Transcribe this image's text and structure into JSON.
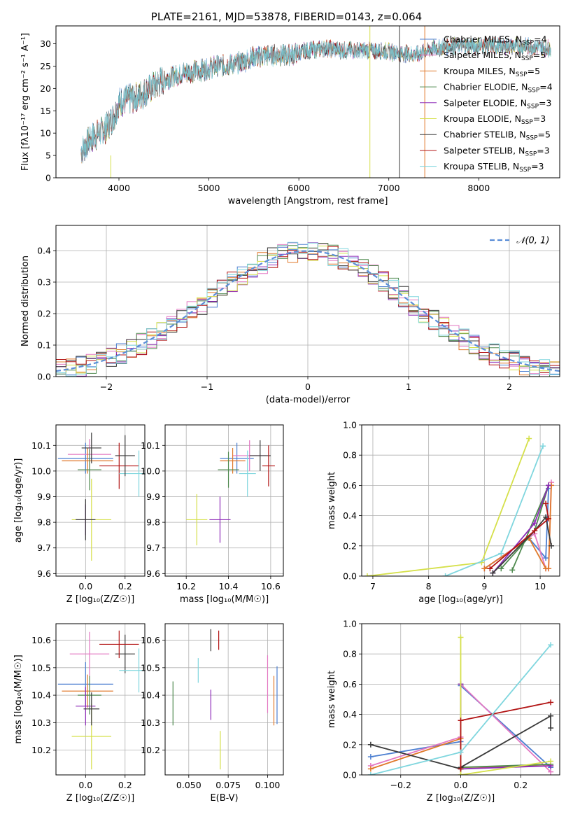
{
  "chart_data": [
    {
      "id": "spectrum",
      "type": "line",
      "title": "PLATE=2161, MJD=53878, FIBERID=0143, z=0.064",
      "xlabel": "wavelength [Angstrom, rest frame]",
      "ylabel": "Flux [fλ10⁻¹⁷ erg cm⁻² s⁻¹ A⁻¹]",
      "xlim": [
        3300,
        8900
      ],
      "ylim": [
        0,
        34
      ],
      "xticks": [
        4000,
        5000,
        6000,
        7000,
        8000
      ],
      "yticks": [
        0,
        5,
        10,
        15,
        20,
        25,
        30
      ],
      "grid": false,
      "legend_placement": "right",
      "legend": [
        {
          "label": "Chabrier MILES, N",
          "sub": "SSP",
          "suffix": "=4",
          "color": "#4c7fd1"
        },
        {
          "label": "Salpeter MILES, N",
          "sub": "SSP",
          "suffix": "=5",
          "color": "#e377c2"
        },
        {
          "label": "Kroupa MILES, N",
          "sub": "SSP",
          "suffix": "=5",
          "color": "#e0792b"
        },
        {
          "label": "Chabrier ELODIE, N",
          "sub": "SSP",
          "suffix": "=4",
          "color": "#4f8a4f"
        },
        {
          "label": "Salpeter ELODIE, N",
          "sub": "SSP",
          "suffix": "=3",
          "color": "#8e2bb8"
        },
        {
          "label": "Kroupa ELODIE, N",
          "sub": "SSP",
          "suffix": "=3",
          "color": "#d5e04a"
        },
        {
          "label": "Chabrier STELIB, N",
          "sub": "SSP",
          "suffix": "=5",
          "color": "#3a3a3a"
        },
        {
          "label": "Salpeter STELIB, N",
          "sub": "SSP",
          "suffix": "=3",
          "color": "#b21414"
        },
        {
          "label": "Kroupa STELIB, N",
          "sub": "SSP",
          "suffix": "=3",
          "color": "#7fd6de"
        }
      ],
      "continuum_x": [
        3580,
        3700,
        3850,
        3950,
        4000,
        4100,
        4200,
        4350,
        4500,
        4700,
        4900,
        5100,
        5300,
        5500,
        5700,
        5900,
        6100,
        6300,
        6500,
        6700,
        6900,
        7100,
        7300,
        7500,
        7700,
        7900,
        8100,
        8300,
        8500,
        8800
      ],
      "continuum_y": [
        6,
        9,
        11,
        14,
        17,
        17.5,
        18,
        20,
        22,
        23.5,
        24,
        25,
        25.5,
        27,
        27.5,
        27.5,
        28.5,
        29,
        28.5,
        28.5,
        28.5,
        28,
        27.5,
        29,
        29.5,
        29.5,
        29.5,
        29.5,
        29.5,
        29
      ]
    },
    {
      "id": "residuals",
      "type": "line",
      "xlabel": "(data-model)/error",
      "ylabel": "Normed distribution",
      "xlim": [
        -2.5,
        2.5
      ],
      "ylim": [
        0,
        0.48
      ],
      "xticks": [
        -2,
        -1,
        0,
        1,
        2
      ],
      "yticks": [
        0.0,
        0.1,
        0.2,
        0.3,
        0.4
      ],
      "grid": true,
      "legend_placement": "upper right",
      "reference_curve": "𝒩(0, 1)"
    },
    {
      "id": "age_vs_Z",
      "type": "scatter",
      "xlabel": "Z [log₁₀(Z/Z☉)]",
      "ylabel": "age  [log₁₀(age/yr)]",
      "xlim": [
        -0.15,
        0.3
      ],
      "ylim": [
        9.59,
        10.18
      ],
      "xticks": [
        0.0,
        0.2
      ],
      "yticks": [
        9.6,
        9.7,
        9.8,
        9.9,
        10.0,
        10.1
      ],
      "grid": true,
      "points": [
        {
          "x": 0.0,
          "y": 10.05,
          "xerr": 0.14,
          "yerr": 0.06,
          "color": "#4c7fd1"
        },
        {
          "x": 0.02,
          "y": 10.065,
          "xerr": 0.11,
          "yerr": 0.06,
          "color": "#e377c2"
        },
        {
          "x": 0.01,
          "y": 10.04,
          "xerr": 0.13,
          "yerr": 0.05,
          "color": "#e0792b"
        },
        {
          "x": 0.02,
          "y": 10.005,
          "xerr": 0.06,
          "yerr": 0.08,
          "color": "#4f8a4f"
        },
        {
          "x": 0.0,
          "y": 9.81,
          "xerr": 0.05,
          "yerr": 0.06,
          "color": "#8e2bb8"
        },
        {
          "x": 0.03,
          "y": 9.81,
          "xerr": 0.1,
          "yerr": 0.16,
          "color": "#d5e04a"
        },
        {
          "x": 0.03,
          "y": 10.09,
          "xerr": 0.05,
          "yerr": 0.06,
          "color": "#3a3a3a"
        },
        {
          "x": 0.17,
          "y": 10.02,
          "xerr": 0.1,
          "yerr": 0.09,
          "color": "#b21414"
        },
        {
          "x": 0.27,
          "y": 9.99,
          "xerr": 0.1,
          "yerr": 0.09,
          "color": "#7fd6de"
        },
        {
          "x": 0.0,
          "y": 9.81,
          "xerr": 0.05,
          "yerr": 0.08,
          "color": "#3a3a3a"
        },
        {
          "x": 0.2,
          "y": 10.06,
          "xerr": 0.05,
          "yerr": 0.08,
          "color": "#3a3a3a"
        }
      ]
    },
    {
      "id": "age_vs_mass",
      "type": "scatter",
      "xlabel": "mass [log₁₀(M/M☉)]",
      "ylabel": "",
      "xlim": [
        10.1,
        10.66
      ],
      "ylim": [
        9.59,
        10.18
      ],
      "xticks": [
        10.2,
        10.4,
        10.6
      ],
      "yticks": [
        9.6,
        9.7,
        9.8,
        9.9,
        10.0,
        10.1
      ],
      "grid": true,
      "points": [
        {
          "x": 10.44,
          "y": 10.05,
          "xerr": 0.08,
          "yerr": 0.06,
          "color": "#4c7fd1"
        },
        {
          "x": 10.5,
          "y": 10.06,
          "xerr": 0.08,
          "yerr": 0.06,
          "color": "#e377c2"
        },
        {
          "x": 10.42,
          "y": 10.04,
          "xerr": 0.06,
          "yerr": 0.05,
          "color": "#e0792b"
        },
        {
          "x": 10.4,
          "y": 10.005,
          "xerr": 0.05,
          "yerr": 0.07,
          "color": "#4f8a4f"
        },
        {
          "x": 10.36,
          "y": 9.81,
          "xerr": 0.05,
          "yerr": 0.09,
          "color": "#8e2bb8"
        },
        {
          "x": 10.25,
          "y": 9.81,
          "xerr": 0.05,
          "yerr": 0.1,
          "color": "#d5e04a"
        },
        {
          "x": 10.55,
          "y": 10.06,
          "xerr": 0.05,
          "yerr": 0.06,
          "color": "#3a3a3a"
        },
        {
          "x": 10.59,
          "y": 10.02,
          "xerr": 0.03,
          "yerr": 0.08,
          "color": "#b21414"
        },
        {
          "x": 10.49,
          "y": 9.99,
          "xerr": 0.04,
          "yerr": 0.09,
          "color": "#7fd6de"
        }
      ]
    },
    {
      "id": "weight_vs_age",
      "type": "line",
      "xlabel": "age  [log₁₀(age/yr)]",
      "ylabel": "mass weight",
      "xlim": [
        6.8,
        10.35
      ],
      "ylim": [
        0,
        1.0
      ],
      "xticks": [
        7,
        8,
        9,
        10
      ],
      "yticks": [
        0.0,
        0.2,
        0.4,
        0.6,
        0.8,
        1.0
      ],
      "grid": true,
      "series": [
        {
          "color": "#4c7fd1",
          "x": [
            9.0,
            9.8,
            10.1,
            10.15
          ],
          "y": [
            0.05,
            0.25,
            0.12,
            0.58
          ]
        },
        {
          "color": "#e377c2",
          "x": [
            9.0,
            9.9,
            10.1,
            10.15,
            10.2
          ],
          "y": [
            0.05,
            0.28,
            0.05,
            0.05,
            0.62
          ]
        },
        {
          "color": "#e0792b",
          "x": [
            9.0,
            9.8,
            10.1,
            10.15,
            10.2
          ],
          "y": [
            0.05,
            0.25,
            0.05,
            0.05,
            0.6
          ]
        },
        {
          "color": "#4f8a4f",
          "x": [
            9.3,
            9.9,
            10.15,
            9.5
          ],
          "y": [
            0.05,
            0.3,
            0.6,
            0.04
          ]
        },
        {
          "color": "#8e2bb8",
          "x": [
            9.15,
            9.9,
            10.15
          ],
          "y": [
            0.02,
            0.35,
            0.6
          ]
        },
        {
          "color": "#d5e04a",
          "x": [
            6.9,
            8.95,
            9.8
          ],
          "y": [
            0.0,
            0.09,
            0.91
          ]
        },
        {
          "color": "#3a3a3a",
          "x": [
            9.15,
            9.9,
            10.1,
            10.2
          ],
          "y": [
            0.02,
            0.3,
            0.39,
            0.2
          ]
        },
        {
          "color": "#b21414",
          "x": [
            9.1,
            9.9,
            10.15,
            10.1
          ],
          "y": [
            0.05,
            0.3,
            0.38,
            0.48
          ]
        },
        {
          "color": "#7fd6de",
          "x": [
            8.3,
            9.3,
            10.05
          ],
          "y": [
            0.0,
            0.15,
            0.86
          ]
        }
      ]
    },
    {
      "id": "mass_vs_Z",
      "type": "scatter",
      "xlabel": "Z [log₁₀(Z/Z☉)]",
      "ylabel": "mass [log₁₀(M/M☉)]",
      "xlim": [
        -0.15,
        0.3
      ],
      "ylim": [
        10.11,
        10.66
      ],
      "xticks": [
        0.0,
        0.2
      ],
      "yticks": [
        10.2,
        10.3,
        10.4,
        10.5,
        10.6
      ],
      "grid": true,
      "points": [
        {
          "x": 0.0,
          "y": 10.44,
          "xerr": 0.14,
          "yerr": 0.08,
          "color": "#4c7fd1"
        },
        {
          "x": 0.02,
          "y": 10.55,
          "xerr": 0.1,
          "yerr": 0.08,
          "color": "#e377c2"
        },
        {
          "x": 0.01,
          "y": 10.415,
          "xerr": 0.13,
          "yerr": 0.06,
          "color": "#e0792b"
        },
        {
          "x": 0.02,
          "y": 10.4,
          "xerr": 0.06,
          "yerr": 0.07,
          "color": "#4f8a4f"
        },
        {
          "x": 0.0,
          "y": 10.36,
          "xerr": 0.05,
          "yerr": 0.07,
          "color": "#8e2bb8"
        },
        {
          "x": 0.03,
          "y": 10.25,
          "xerr": 0.1,
          "yerr": 0.12,
          "color": "#d5e04a"
        },
        {
          "x": 0.2,
          "y": 10.55,
          "xerr": 0.05,
          "yerr": 0.07,
          "color": "#3a3a3a"
        },
        {
          "x": 0.17,
          "y": 10.585,
          "xerr": 0.1,
          "yerr": 0.05,
          "color": "#b21414"
        },
        {
          "x": 0.27,
          "y": 10.49,
          "xerr": 0.1,
          "yerr": 0.08,
          "color": "#7fd6de"
        },
        {
          "x": 0.03,
          "y": 10.35,
          "xerr": 0.04,
          "yerr": 0.06,
          "color": "#3a3a3a"
        }
      ]
    },
    {
      "id": "mass_vs_ebv",
      "type": "scatter",
      "xlabel": "E(B-V)",
      "ylabel": "",
      "xlim": [
        0.035,
        0.11
      ],
      "ylim": [
        10.11,
        10.66
      ],
      "xticks": [
        0.05,
        0.075,
        0.1
      ],
      "yticks": [
        10.2,
        10.3,
        10.4,
        10.5,
        10.6
      ],
      "grid": true,
      "points": [
        {
          "x": 0.106,
          "y": 10.4,
          "xerr": 0.0,
          "yerr": 0.105,
          "color": "#4c7fd1"
        },
        {
          "x": 0.1,
          "y": 10.44,
          "xerr": 0.0,
          "yerr": 0.105,
          "color": "#e377c2"
        },
        {
          "x": 0.104,
          "y": 10.38,
          "xerr": 0.0,
          "yerr": 0.09,
          "color": "#e0792b"
        },
        {
          "x": 0.04,
          "y": 10.37,
          "xerr": 0.0,
          "yerr": 0.08,
          "color": "#4f8a4f"
        },
        {
          "x": 0.064,
          "y": 10.365,
          "xerr": 0.0,
          "yerr": 0.055,
          "color": "#8e2bb8"
        },
        {
          "x": 0.07,
          "y": 10.2,
          "xerr": 0.0,
          "yerr": 0.07,
          "color": "#d5e04a"
        },
        {
          "x": 0.064,
          "y": 10.6,
          "xerr": 0.0,
          "yerr": 0.04,
          "color": "#3a3a3a"
        },
        {
          "x": 0.069,
          "y": 10.6,
          "xerr": 0.0,
          "yerr": 0.035,
          "color": "#b21414"
        },
        {
          "x": 0.056,
          "y": 10.49,
          "xerr": 0.0,
          "yerr": 0.045,
          "color": "#7fd6de"
        }
      ]
    },
    {
      "id": "weight_vs_Z",
      "type": "line",
      "xlabel": "Z [log₁₀(Z/Z☉)]",
      "ylabel": "mass weight",
      "xlim": [
        -0.33,
        0.33
      ],
      "ylim": [
        0,
        1.0
      ],
      "xticks": [
        -0.2,
        0.0,
        0.2
      ],
      "yticks": [
        0.0,
        0.2,
        0.4,
        0.6,
        0.8,
        1.0
      ],
      "grid": true,
      "series": [
        {
          "color": "#4c7fd1",
          "x": [
            -0.3,
            0.0,
            0.0,
            0.3
          ],
          "y": [
            0.12,
            0.22,
            0.59,
            0.05
          ]
        },
        {
          "color": "#e377c2",
          "x": [
            -0.3,
            0.0,
            0.0,
            0.3
          ],
          "y": [
            0.06,
            0.25,
            0.6,
            0.02
          ]
        },
        {
          "color": "#e0792b",
          "x": [
            -0.3,
            0.0,
            0.0,
            0.3
          ],
          "y": [
            0.04,
            0.24,
            0.05,
            0.06
          ]
        },
        {
          "color": "#4f8a4f",
          "x": [
            0.0,
            0.0,
            0.3
          ],
          "y": [
            0.6,
            0.05,
            0.07
          ]
        },
        {
          "color": "#8e2bb8",
          "x": [
            0.0,
            0.0,
            0.3
          ],
          "y": [
            0.6,
            0.04,
            0.06
          ]
        },
        {
          "color": "#d5e04a",
          "x": [
            0.0,
            0.0,
            0.3
          ],
          "y": [
            0.91,
            0.0,
            0.09
          ]
        },
        {
          "color": "#3a3a3a",
          "x": [
            -0.3,
            0.0,
            0.0,
            0.3,
            0.3
          ],
          "y": [
            0.2,
            0.04,
            0.05,
            0.39,
            0.31
          ]
        },
        {
          "color": "#b21414",
          "x": [
            0.0,
            0.0,
            0.3
          ],
          "y": [
            0.04,
            0.36,
            0.48
          ]
        },
        {
          "color": "#7fd6de",
          "x": [
            -0.3,
            0.0,
            0.3
          ],
          "y": [
            0.0,
            0.15,
            0.86
          ]
        }
      ]
    }
  ]
}
